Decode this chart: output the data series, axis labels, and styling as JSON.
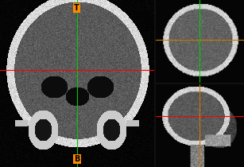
{
  "background_color": "#000000",
  "crosshair_color_h": "#ff0000",
  "crosshair_color_v": "#00cc00",
  "crosshair_color_orange": "#cc7700",
  "label_T_color": "#ff8800",
  "label_B_color": "#ff8800",
  "label_T_text": "T",
  "label_B_text": "B"
}
